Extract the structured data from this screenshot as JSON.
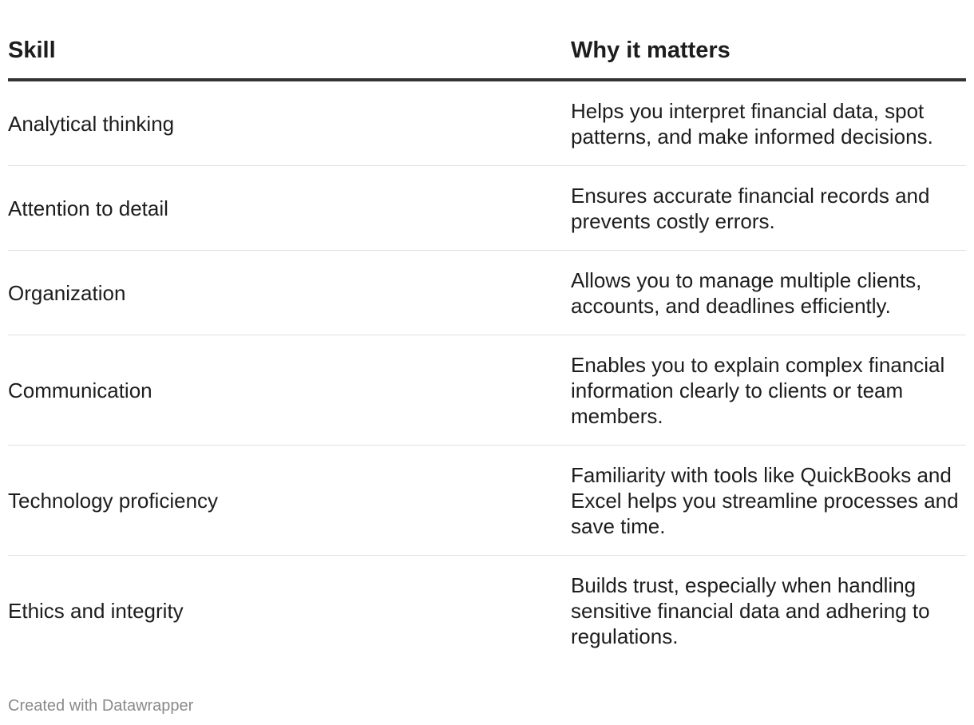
{
  "table": {
    "headers": {
      "skill": "Skill",
      "why": "Why it matters"
    },
    "rows": [
      {
        "skill": "Analytical thinking",
        "why": "Helps you interpret financial data, spot patterns, and make informed decisions."
      },
      {
        "skill": "Attention to detail",
        "why": "Ensures accurate financial records and prevents costly errors."
      },
      {
        "skill": "Organization",
        "why": "Allows you to manage multiple clients, accounts, and deadlines efficiently."
      },
      {
        "skill": "Communication",
        "why": "Enables you to explain complex financial information clearly to clients or team members."
      },
      {
        "skill": "Technology proficiency",
        "why": "Familiarity with tools like QuickBooks and Excel helps you streamline processes and save time."
      },
      {
        "skill": "Ethics and integrity",
        "why": "Builds trust, especially when handling sensitive financial data and adhering to regulations."
      }
    ]
  },
  "footer": {
    "credit": "Created with Datawrapper"
  }
}
